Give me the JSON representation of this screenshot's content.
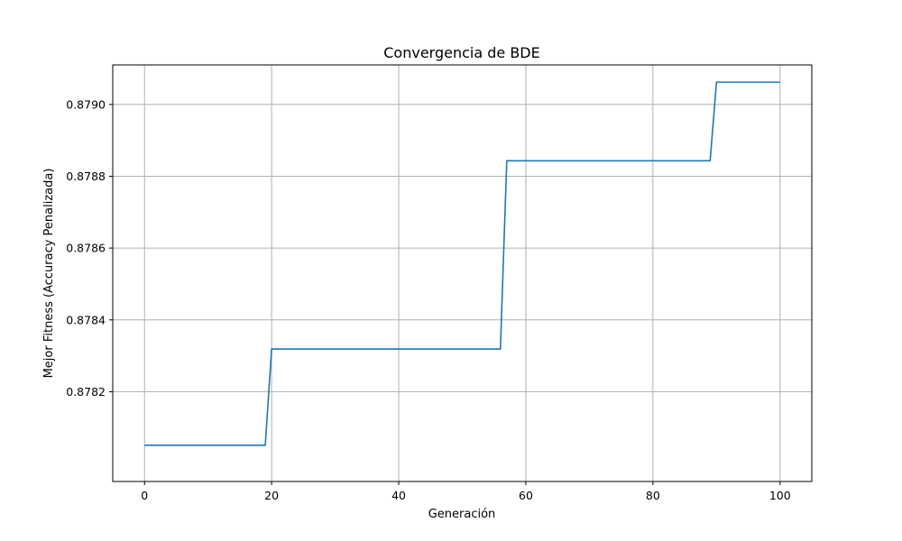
{
  "chart_data": {
    "type": "line",
    "title": "Convergencia de BDE",
    "xlabel": "Generación",
    "ylabel": "Mejor Fitness (Accuracy Penalizada)",
    "xlim": [
      -5,
      105
    ],
    "ylim": [
      0.87795,
      0.87911
    ],
    "xticks": [
      0,
      20,
      40,
      60,
      80,
      100
    ],
    "yticks": [
      0.8782,
      0.8784,
      0.8786,
      0.8788,
      0.879
    ],
    "xtick_labels": [
      "0",
      "20",
      "40",
      "60",
      "80",
      "100"
    ],
    "ytick_labels": [
      "0.8782",
      "0.8784",
      "0.8786",
      "0.8788",
      "0.8790"
    ],
    "grid": true,
    "legend": "none",
    "series": [
      {
        "color": "#1f77b4",
        "points": [
          {
            "x": 0,
            "y": 0.878051
          },
          {
            "x": 19,
            "y": 0.878051
          },
          {
            "x": 20,
            "y": 0.878319
          },
          {
            "x": 56,
            "y": 0.878319
          },
          {
            "x": 57,
            "y": 0.878843
          },
          {
            "x": 89,
            "y": 0.878843
          },
          {
            "x": 90,
            "y": 0.879062
          },
          {
            "x": 100,
            "y": 0.879062
          }
        ]
      }
    ]
  }
}
